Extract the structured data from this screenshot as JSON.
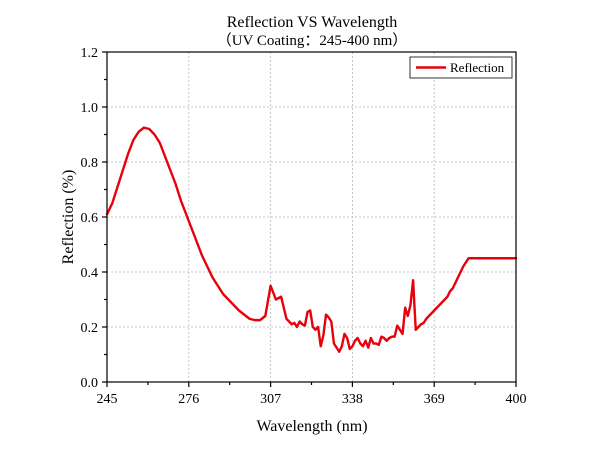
{
  "chart_data": {
    "type": "line",
    "title": "Reflection VS Wavelength",
    "subtitle": "（UV Coating：245-400 nm）",
    "xlabel": "Wavelength (nm)",
    "ylabel": "Reflection (%)",
    "xlim": [
      245,
      400
    ],
    "ylim": [
      0.0,
      1.2
    ],
    "xticks": [
      245,
      276,
      307,
      338,
      369,
      400
    ],
    "yticks": [
      0.0,
      0.2,
      0.4,
      0.6,
      0.8,
      1.0,
      1.2
    ],
    "xtick_labels": [
      "245",
      "276",
      "307",
      "338",
      "369",
      "400"
    ],
    "ytick_labels": [
      "0.0",
      "0.2",
      "0.4",
      "0.6",
      "0.8",
      "1.0",
      "1.2"
    ],
    "grid": true,
    "legend_position": "top-right",
    "series": [
      {
        "name": "Reflection",
        "color": "#e8000b",
        "x": [
          245,
          247,
          249,
          251,
          253,
          255,
          257,
          259,
          261,
          263,
          265,
          267,
          269,
          271,
          273,
          275,
          277,
          279,
          281,
          283,
          285,
          287,
          289,
          291,
          293,
          295,
          297,
          299,
          301,
          303,
          305,
          307,
          309,
          311,
          313,
          315,
          316,
          317,
          318,
          319,
          320,
          321,
          322,
          323,
          324,
          325,
          326,
          327,
          328,
          329,
          330,
          331,
          332,
          333,
          334,
          335,
          336,
          337,
          338,
          339,
          340,
          341,
          342,
          343,
          344,
          345,
          346,
          347,
          348,
          349,
          350,
          351,
          352,
          353,
          354,
          355,
          356,
          357,
          358,
          359,
          360,
          361,
          362,
          363,
          364,
          365,
          366,
          367,
          368,
          369,
          370,
          371,
          372,
          373,
          374,
          375,
          376,
          377,
          378,
          379,
          380,
          382,
          384,
          386,
          388,
          390,
          392,
          394,
          396,
          398,
          400
        ],
        "y": [
          0.61,
          0.65,
          0.71,
          0.77,
          0.83,
          0.88,
          0.91,
          0.925,
          0.92,
          0.9,
          0.87,
          0.82,
          0.77,
          0.72,
          0.66,
          0.61,
          0.56,
          0.51,
          0.46,
          0.42,
          0.38,
          0.35,
          0.32,
          0.3,
          0.28,
          0.26,
          0.245,
          0.23,
          0.225,
          0.225,
          0.24,
          0.35,
          0.3,
          0.31,
          0.23,
          0.21,
          0.215,
          0.2,
          0.22,
          0.21,
          0.205,
          0.255,
          0.26,
          0.2,
          0.19,
          0.2,
          0.13,
          0.17,
          0.245,
          0.235,
          0.22,
          0.14,
          0.125,
          0.11,
          0.13,
          0.175,
          0.16,
          0.12,
          0.13,
          0.15,
          0.16,
          0.14,
          0.13,
          0.15,
          0.125,
          0.16,
          0.14,
          0.14,
          0.135,
          0.165,
          0.16,
          0.15,
          0.16,
          0.165,
          0.165,
          0.205,
          0.19,
          0.175,
          0.27,
          0.24,
          0.28,
          0.37,
          0.19,
          0.2,
          0.21,
          0.215,
          0.23,
          0.24,
          0.25,
          0.26,
          0.27,
          0.28,
          0.29,
          0.3,
          0.31,
          0.33,
          0.34,
          0.36,
          0.38,
          0.4,
          0.42,
          0.45,
          0.45,
          0.45,
          0.45,
          0.45,
          0.45,
          0.45,
          0.45,
          0.45,
          0.45
        ]
      }
    ]
  }
}
